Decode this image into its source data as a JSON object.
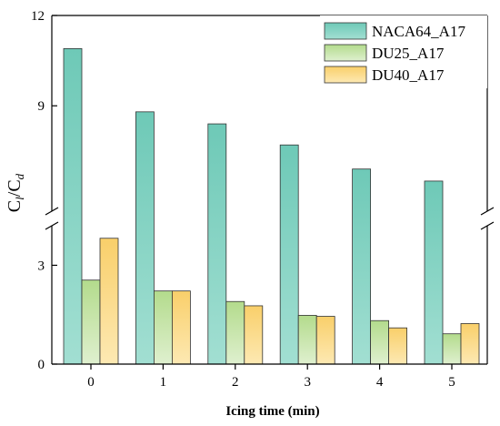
{
  "chart_data": {
    "type": "bar",
    "xlabel": "Icing time (min)",
    "ylabel_main": "C",
    "ylabel_sub1": "l",
    "ylabel_mid": "/C",
    "ylabel_sub2": "d",
    "categories": [
      "0",
      "1",
      "2",
      "3",
      "4",
      "5"
    ],
    "series": [
      {
        "name": "NACA64_A17",
        "values": [
          10.9,
          8.8,
          8.4,
          7.7,
          6.9,
          6.5
        ],
        "color_top": "#6ec9b7",
        "color_bottom": "#a2dfd2"
      },
      {
        "name": "DU25_A17",
        "values": [
          2.55,
          2.22,
          1.9,
          1.48,
          1.32,
          0.92
        ],
        "color_top": "#b3db8c",
        "color_bottom": "#dff0cf"
      },
      {
        "name": "DU40_A17",
        "values": [
          3.82,
          2.22,
          1.77,
          1.45,
          1.1,
          1.23
        ],
        "color_top": "#f9cf6a",
        "color_bottom": "#fde9b3"
      }
    ],
    "y_axis_break": {
      "lower": [
        0,
        4.2
      ],
      "upper": [
        5.5,
        12
      ]
    },
    "y_ticks_lower": [
      0,
      3
    ],
    "y_ticks_upper": [
      9,
      12
    ],
    "legend_position": "top-right",
    "grid": false
  }
}
